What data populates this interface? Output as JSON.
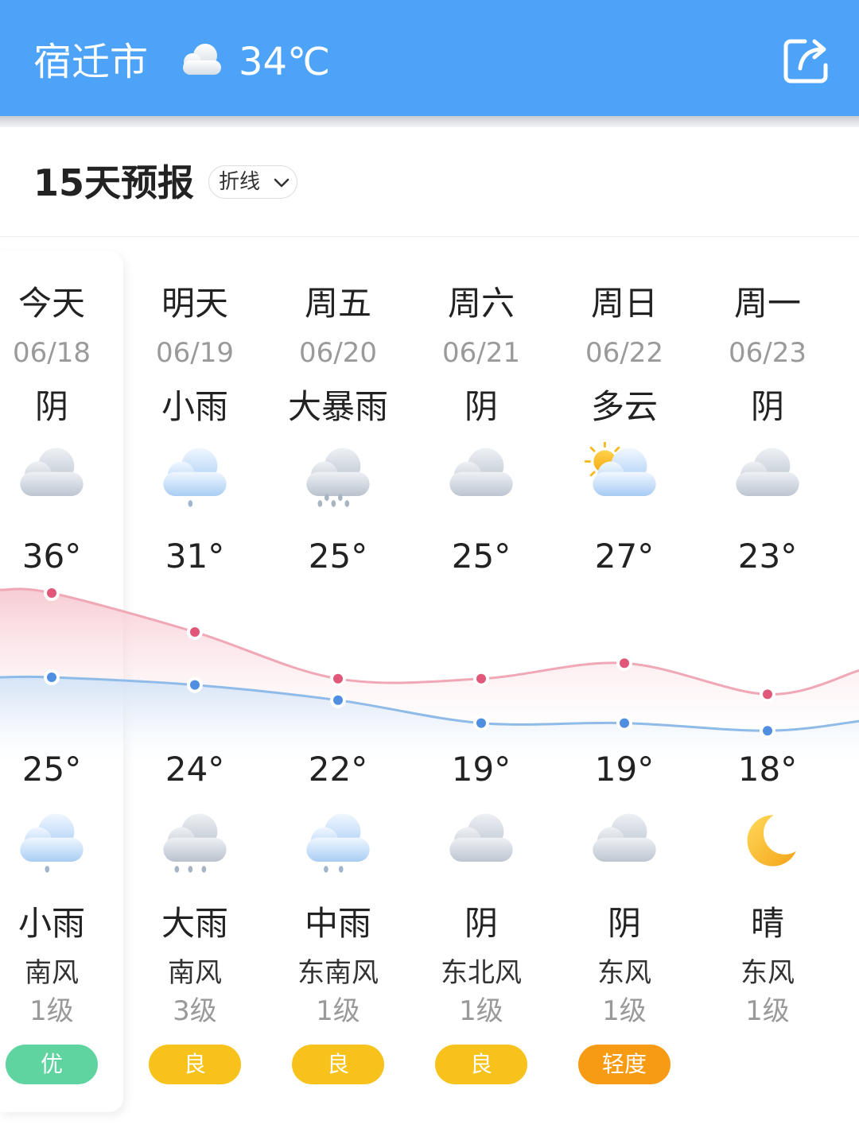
{
  "header": {
    "city": "宿迁市",
    "current_temp": "34℃",
    "current_icon": "cloud-icon",
    "share_icon": "share-icon",
    "bg_color": "#4da3f8"
  },
  "forecast": {
    "title": "15天预报",
    "mode_label": "折线"
  },
  "days": [
    {
      "name": "今天",
      "date": "06/18",
      "day_weather": "阴",
      "day_icon": "overcast-icon",
      "high": "36°",
      "low": "25°",
      "night_icon": "light-rain-icon",
      "night_weather": "小雨",
      "wind_dir": "南风",
      "wind_level": "1级",
      "aqi": "优",
      "aqi_color": "#5fd4a0"
    },
    {
      "name": "明天",
      "date": "06/19",
      "day_weather": "小雨",
      "day_icon": "light-rain-icon",
      "high": "31°",
      "low": "24°",
      "night_icon": "heavy-rain-icon",
      "night_weather": "大雨",
      "wind_dir": "南风",
      "wind_level": "3级",
      "aqi": "良",
      "aqi_color": "#f7c21b"
    },
    {
      "name": "周五",
      "date": "06/20",
      "day_weather": "大暴雨",
      "day_icon": "rainstorm-icon",
      "high": "25°",
      "low": "22°",
      "night_icon": "moderate-rain-icon",
      "night_weather": "中雨",
      "wind_dir": "东南风",
      "wind_level": "1级",
      "aqi": "良",
      "aqi_color": "#f7c21b"
    },
    {
      "name": "周六",
      "date": "06/21",
      "day_weather": "阴",
      "day_icon": "overcast-icon",
      "high": "25°",
      "low": "19°",
      "night_icon": "overcast-icon",
      "night_weather": "阴",
      "wind_dir": "东北风",
      "wind_level": "1级",
      "aqi": "良",
      "aqi_color": "#f7c21b"
    },
    {
      "name": "周日",
      "date": "06/22",
      "day_weather": "多云",
      "day_icon": "partly-cloudy-icon",
      "high": "27°",
      "low": "19°",
      "night_icon": "overcast-icon",
      "night_weather": "阴",
      "wind_dir": "东风",
      "wind_level": "1级",
      "aqi": "轻度",
      "aqi_color": "#f89b14"
    },
    {
      "name": "周一",
      "date": "06/23",
      "day_weather": "阴",
      "day_icon": "overcast-icon",
      "high": "23°",
      "low": "18°",
      "night_icon": "moon-icon",
      "night_weather": "晴",
      "wind_dir": "东风",
      "wind_level": "1级",
      "aqi": "",
      "aqi_color": ""
    }
  ],
  "chart_data": {
    "type": "line",
    "categories": [
      "06/18",
      "06/19",
      "06/20",
      "06/21",
      "06/22",
      "06/23"
    ],
    "series": [
      {
        "values": [
          36,
          31,
          25,
          25,
          27,
          23
        ],
        "color": "#e0577a"
      },
      {
        "values": [
          25,
          24,
          22,
          19,
          19,
          18
        ],
        "color": "#4f8ee0"
      }
    ]
  }
}
